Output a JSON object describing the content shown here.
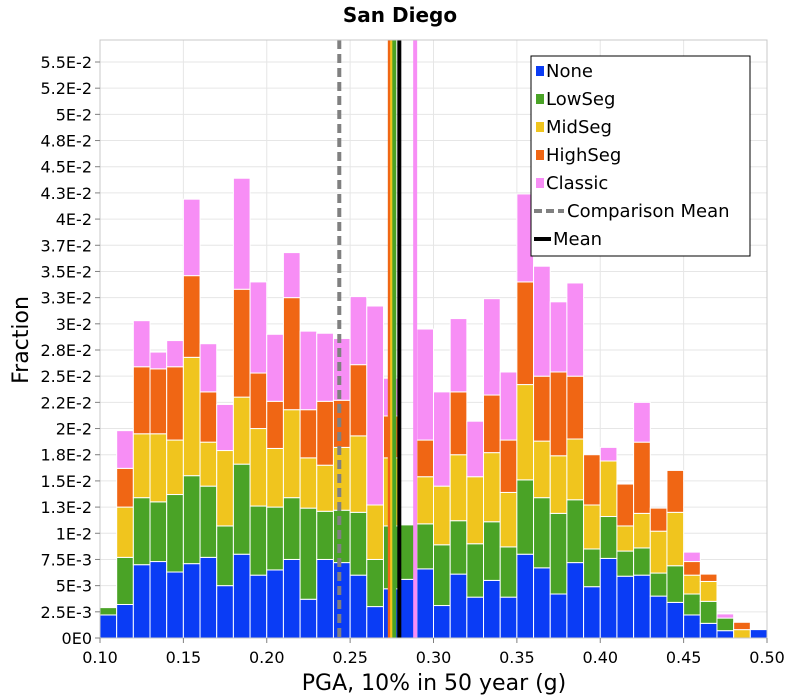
{
  "chart_data": {
    "type": "bar",
    "stacked": true,
    "title": "San Diego",
    "xlabel": "PGA, 10% in 50 year (g)",
    "ylabel": "Fraction",
    "xlim": [
      0.1,
      0.5
    ],
    "ylim": [
      0,
      0.0571
    ],
    "bin_width": 0.01,
    "x_ticks": [
      {
        "value": 0.1,
        "label": "0.10"
      },
      {
        "value": 0.15,
        "label": "0.15"
      },
      {
        "value": 0.2,
        "label": "0.20"
      },
      {
        "value": 0.25,
        "label": "0.25"
      },
      {
        "value": 0.3,
        "label": "0.30"
      },
      {
        "value": 0.35,
        "label": "0.35"
      },
      {
        "value": 0.4,
        "label": "0.40"
      },
      {
        "value": 0.45,
        "label": "0.45"
      },
      {
        "value": 0.5,
        "label": "0.50"
      }
    ],
    "y_ticks": [
      {
        "value": 0,
        "label": "0E0"
      },
      {
        "value": 0.0025,
        "label": "2.5E-3"
      },
      {
        "value": 0.005,
        "label": "5E-3"
      },
      {
        "value": 0.0075,
        "label": "7.5E-3"
      },
      {
        "value": 0.01,
        "label": "1E-2"
      },
      {
        "value": 0.0125,
        "label": "1.3E-2"
      },
      {
        "value": 0.015,
        "label": "1.5E-2"
      },
      {
        "value": 0.0175,
        "label": "1.8E-2"
      },
      {
        "value": 0.02,
        "label": "2E-2"
      },
      {
        "value": 0.0225,
        "label": "2.2E-2"
      },
      {
        "value": 0.025,
        "label": "2.5E-2"
      },
      {
        "value": 0.0275,
        "label": "2.8E-2"
      },
      {
        "value": 0.03,
        "label": "3E-2"
      },
      {
        "value": 0.0325,
        "label": "3.3E-2"
      },
      {
        "value": 0.035,
        "label": "3.5E-2"
      },
      {
        "value": 0.0375,
        "label": "3.7E-2"
      },
      {
        "value": 0.04,
        "label": "4E-2"
      },
      {
        "value": 0.0425,
        "label": "4.3E-2"
      },
      {
        "value": 0.045,
        "label": "4.5E-2"
      },
      {
        "value": 0.0475,
        "label": "4.8E-2"
      },
      {
        "value": 0.05,
        "label": "5E-2"
      },
      {
        "value": 0.0525,
        "label": "5.2E-2"
      },
      {
        "value": 0.055,
        "label": "5.5E-2"
      }
    ],
    "x": [
      0.1,
      0.11,
      0.12,
      0.13,
      0.14,
      0.15,
      0.16,
      0.17,
      0.18,
      0.19,
      0.2,
      0.21,
      0.22,
      0.23,
      0.24,
      0.25,
      0.26,
      0.27,
      0.28,
      0.29,
      0.3,
      0.31,
      0.32,
      0.33,
      0.34,
      0.35,
      0.36,
      0.37,
      0.38,
      0.39,
      0.4,
      0.41,
      0.42,
      0.43,
      0.44,
      0.45,
      0.46,
      0.47,
      0.48,
      0.49
    ],
    "series": [
      {
        "name": "None",
        "color": "#0a3cf5",
        "values": [
          0.0022,
          0.0032,
          0.007,
          0.0073,
          0.0063,
          0.0071,
          0.0077,
          0.005,
          0.008,
          0.006,
          0.0065,
          0.0075,
          0.0037,
          0.0075,
          0.0072,
          0.006,
          0.003,
          0.0047,
          0.0056,
          0.0066,
          0.0031,
          0.0061,
          0.0039,
          0.0055,
          0.0039,
          0.008,
          0.0067,
          0.0042,
          0.0072,
          0.0049,
          0.0076,
          0.0059,
          0.006,
          0.004,
          0.0034,
          0.0022,
          0.0014,
          0.0007,
          0.0,
          0.0008
        ]
      },
      {
        "name": "LowSeg",
        "color": "#4aa326",
        "values": [
          0.0007,
          0.0045,
          0.0064,
          0.0057,
          0.0074,
          0.0084,
          0.0068,
          0.0057,
          0.0086,
          0.0066,
          0.006,
          0.0059,
          0.0087,
          0.0046,
          0.005,
          0.006,
          0.0045,
          0.006,
          0.0052,
          0.0043,
          0.0058,
          0.0051,
          0.0051,
          0.0056,
          0.0048,
          0.0071,
          0.0067,
          0.0077,
          0.006,
          0.0036,
          0.004,
          0.0024,
          0.0026,
          0.0022,
          0.0035,
          0.002,
          0.0021,
          0.0012,
          0.0,
          0.0
        ]
      },
      {
        "name": "MidSeg",
        "color": "#f0c51e",
        "values": [
          0.0,
          0.0048,
          0.0061,
          0.0065,
          0.0052,
          0.0113,
          0.0042,
          0.0072,
          0.0064,
          0.0074,
          0.0056,
          0.0084,
          0.0048,
          0.0044,
          0.006,
          0.0073,
          0.0052,
          0.0065,
          0.0,
          0.0045,
          0.0056,
          0.0063,
          0.0064,
          0.0066,
          0.0052,
          0.0091,
          0.0054,
          0.0055,
          0.0058,
          0.0042,
          0.0053,
          0.0024,
          0.0033,
          0.004,
          0.0051,
          0.0018,
          0.0019,
          0.0,
          0.0008,
          0.0
        ]
      },
      {
        "name": "HighSeg",
        "color": "#f06614",
        "values": [
          0.0,
          0.0037,
          0.0064,
          0.0062,
          0.007,
          0.0078,
          0.0048,
          0.0,
          0.0103,
          0.0053,
          0.0045,
          0.0107,
          0.0046,
          0.0061,
          0.0045,
          0.0068,
          0.0,
          0.004,
          0.0,
          0.0035,
          0.0,
          0.006,
          0.0,
          0.0055,
          0.005,
          0.0098,
          0.0062,
          0.008,
          0.006,
          0.0048,
          0.0,
          0.004,
          0.0068,
          0.0022,
          0.004,
          0.0013,
          0.0007,
          0.0,
          0.0007,
          0.0
        ]
      },
      {
        "name": "Classic",
        "color": "#f78ef5",
        "values": [
          0.0,
          0.0036,
          0.0044,
          0.0016,
          0.0025,
          0.0073,
          0.0046,
          0.0044,
          0.0106,
          0.0087,
          0.0064,
          0.0043,
          0.0075,
          0.0065,
          0.0059,
          0.0065,
          0.019,
          0.0036,
          0.0,
          0.0106,
          0.009,
          0.007,
          0.0053,
          0.0092,
          0.0065,
          0.0084,
          0.0105,
          0.0067,
          0.0089,
          0.0,
          0.0013,
          0.0,
          0.0038,
          0.0,
          0.0,
          0.0009,
          0.0,
          0.0004,
          0.0,
          0.0
        ]
      }
    ],
    "vertical_lines": [
      {
        "name": "Comparison Mean",
        "x": 0.2435,
        "color": "#808080",
        "style": "dashed"
      },
      {
        "name": "HighSeg mean",
        "x": 0.2738,
        "color": "#f06614",
        "style": "solid"
      },
      {
        "name": "MidSeg mean",
        "x": 0.2752,
        "color": "#f0c51e",
        "style": "solid"
      },
      {
        "name": "LowSeg mean",
        "x": 0.2765,
        "color": "#4aa326",
        "style": "solid"
      },
      {
        "name": "Classic mean",
        "x": 0.289,
        "color": "#f78ef5",
        "style": "solid"
      },
      {
        "name": "Mean",
        "x": 0.2795,
        "color": "#000000",
        "style": "solid"
      }
    ],
    "legend": {
      "position": "top-right",
      "entries": [
        {
          "label": "None",
          "kind": "box",
          "color": "#0a3cf5"
        },
        {
          "label": "LowSeg",
          "kind": "box",
          "color": "#4aa326"
        },
        {
          "label": "MidSeg",
          "kind": "box",
          "color": "#f0c51e"
        },
        {
          "label": "HighSeg",
          "kind": "box",
          "color": "#f06614"
        },
        {
          "label": "Classic",
          "kind": "box",
          "color": "#f78ef5"
        },
        {
          "label": "Comparison Mean",
          "kind": "dashed",
          "color": "#808080"
        },
        {
          "label": "Mean",
          "kind": "line",
          "color": "#000000"
        }
      ]
    },
    "grid": true
  }
}
